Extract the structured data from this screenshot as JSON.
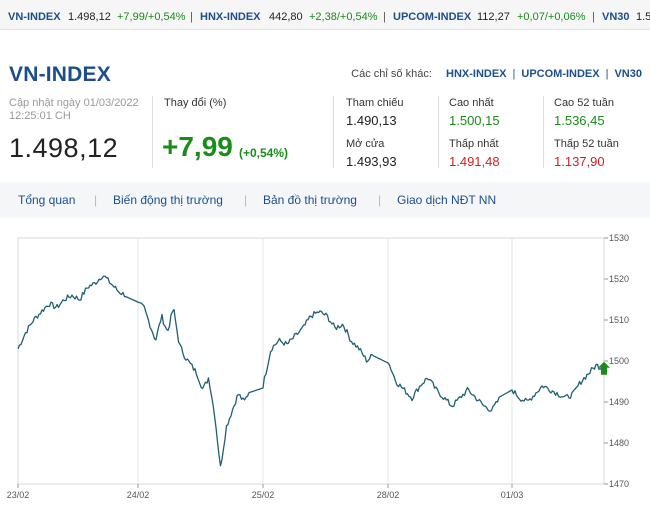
{
  "ticker": [
    {
      "name": "VN-INDEX",
      "value": "1.498,12",
      "change": "+7,99/+0,54%"
    },
    {
      "name": "HNX-INDEX",
      "value": "442,80",
      "change": "+2,38/+0,54%"
    },
    {
      "name": "UPCOM-INDEX",
      "value": "112,27",
      "change": "+0,07/+0,06%"
    },
    {
      "name": "VN30",
      "value": "1.5"
    }
  ],
  "header": {
    "title": "VN-INDEX",
    "others_label": "Các chỉ số khác:",
    "others_links": [
      "HNX-INDEX",
      "UPCOM-INDEX",
      "VN30"
    ]
  },
  "summary": {
    "updated_label": "Cập nhật ngày 01/03/2022",
    "updated_time": "12:25:01 CH",
    "price": "1.498,12",
    "change_label": "Thay đổi (%)",
    "change_value": "+7,99",
    "change_pct": "(+0,54%)"
  },
  "stats": {
    "ref_label": "Tham chiếu",
    "ref_value": "1.490,13",
    "open_label": "Mở cửa",
    "open_value": "1.493,93",
    "high_label": "Cao nhất",
    "high_value": "1.500,15",
    "low_label": "Thấp nhất",
    "low_value": "1.491,48",
    "high52_label": "Cao 52 tuần",
    "high52_value": "1.536,45",
    "low52_label": "Thấp 52 tuần",
    "low52_value": "1.137,90"
  },
  "nav": [
    "Tổng quan",
    "Biến động thị trường",
    "Bản đồ thị trường",
    "Giao dịch NĐT NN"
  ],
  "colors": {
    "brand": "#1c4f8a",
    "up": "#1a8c1a",
    "down": "#d11f1f",
    "line": "#1f5e73"
  },
  "chart_data": {
    "type": "line",
    "x_labels": [
      "23/02",
      "24/02",
      "25/02",
      "28/02",
      "01/03"
    ],
    "ylim": [
      1470,
      1530
    ],
    "y_ticks": [
      1530,
      1520,
      1510,
      1500,
      1490,
      1480,
      1470
    ],
    "grid": "vertical",
    "series": [
      {
        "day_points": [
          [
            1503,
            1507,
            1510,
            1512,
            1514,
            1513,
            1515,
            1516,
            1515,
            1518,
            1519,
            1521,
            1519,
            1517,
            1516
          ],
          [
            1514,
            1513,
            1509,
            1505,
            1511,
            1507,
            1513,
            1504,
            1501,
            1499,
            1497,
            1493,
            1496,
            1487,
            1474,
            1484,
            1488,
            1492,
            1490,
            1493
          ],
          [
            1494,
            1503,
            1505,
            1504,
            1506,
            1508,
            1511,
            1512,
            1511,
            1508,
            1509,
            1505,
            1503,
            1500,
            1502
          ],
          [
            1500,
            1495,
            1493,
            1491,
            1494,
            1496,
            1493,
            1491,
            1489,
            1491,
            1493,
            1491,
            1489,
            1488,
            1491
          ],
          [
            1493,
            1491,
            1490,
            1492,
            1494,
            1493,
            1492,
            1491,
            1492,
            1495,
            1497,
            1499,
            1498
          ]
        ],
        "last": 1498.12
      }
    ]
  }
}
